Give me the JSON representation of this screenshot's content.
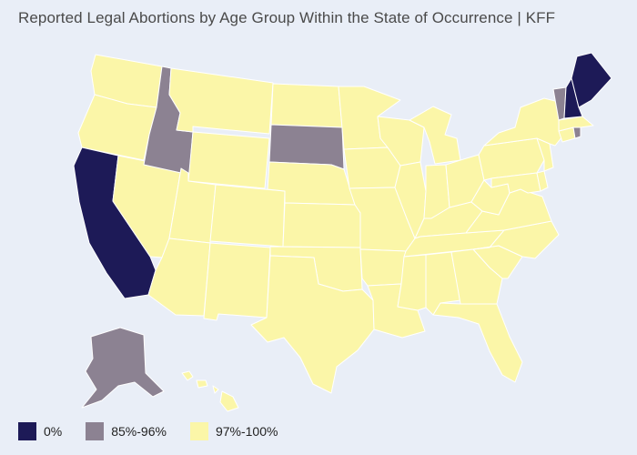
{
  "title": "Reported Legal Abortions by Age Group Within the State of Occurrence | KFF",
  "colors": {
    "background": "#e9eef7",
    "border": "#ffffff",
    "bin_0": "#1d1a57",
    "bin_85_96": "#8c8292",
    "bin_97_100": "#fbf6a8"
  },
  "legend": [
    {
      "label": "0%",
      "color": "#1d1a57"
    },
    {
      "label": "85%-96%",
      "color": "#8c8292"
    },
    {
      "label": "97%-100%",
      "color": "#fbf6a8"
    }
  ],
  "states": {
    "0%": [
      "California",
      "Maine",
      "New Hampshire"
    ],
    "85%-96%": [
      "Alaska",
      "Idaho",
      "South Dakota",
      "Vermont",
      "Rhode Island"
    ],
    "97%-100%": [
      "Washington",
      "Oregon",
      "Nevada",
      "Montana",
      "Wyoming",
      "Utah",
      "Arizona",
      "Colorado",
      "New Mexico",
      "North Dakota",
      "Nebraska",
      "Kansas",
      "Oklahoma",
      "Texas",
      "Minnesota",
      "Iowa",
      "Missouri",
      "Arkansas",
      "Louisiana",
      "Wisconsin",
      "Illinois",
      "Michigan",
      "Indiana",
      "Ohio",
      "Kentucky",
      "Tennessee",
      "Mississippi",
      "Alabama",
      "Georgia",
      "Florida",
      "South Carolina",
      "North Carolina",
      "Virginia",
      "West Virginia",
      "Pennsylvania",
      "New York",
      "New Jersey",
      "Delaware",
      "Maryland",
      "Connecticut",
      "Massachusetts",
      "Hawaii"
    ]
  }
}
